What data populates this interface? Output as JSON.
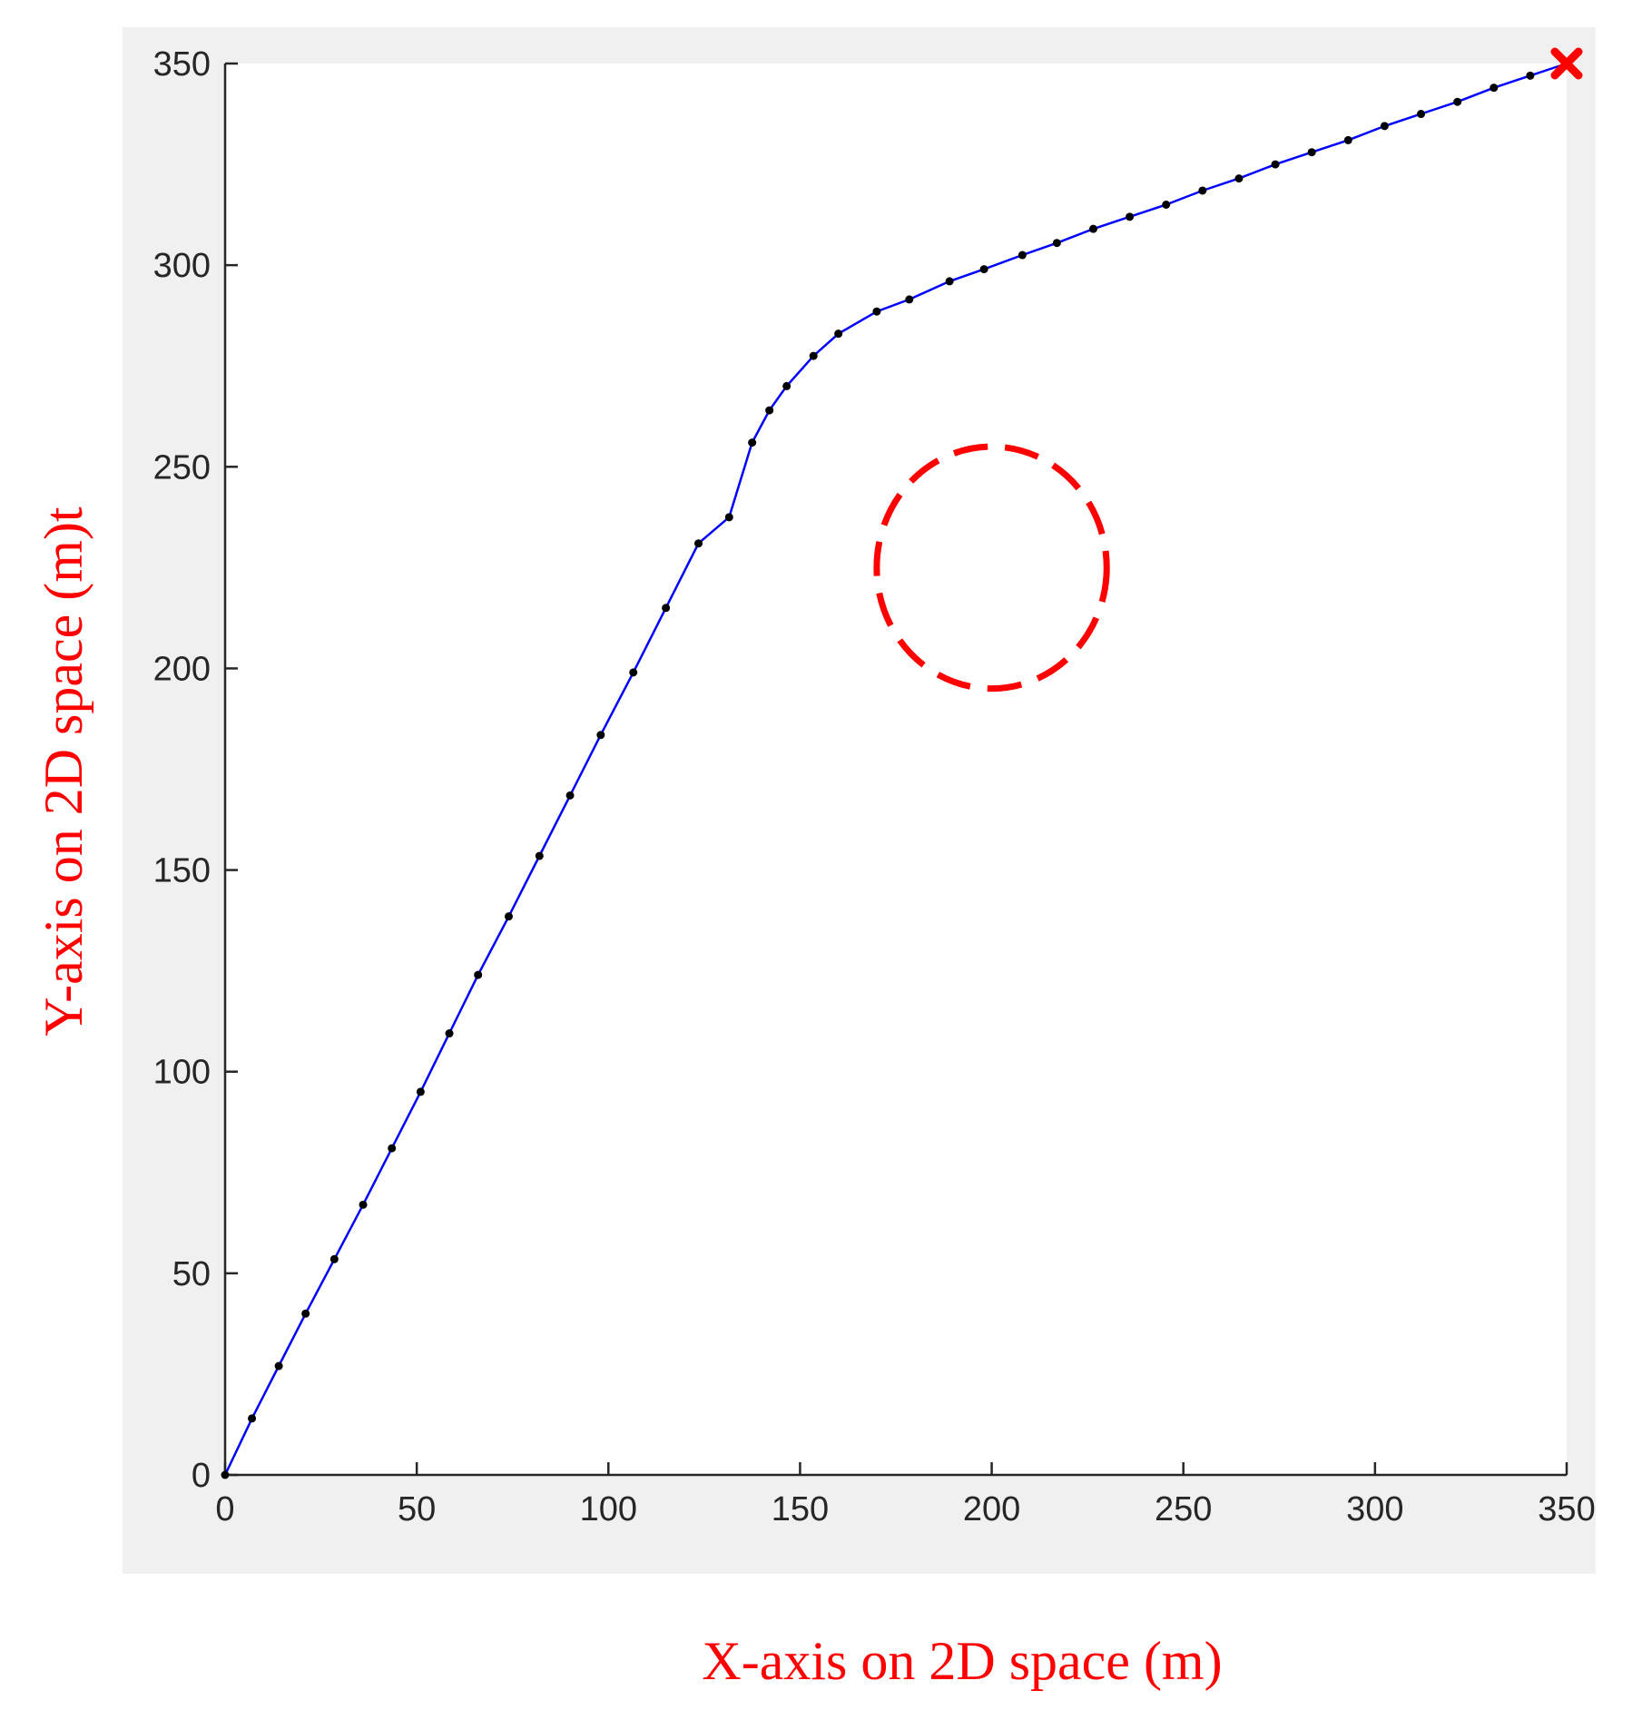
{
  "chart_data": {
    "type": "line",
    "xlabel": "X-axis on 2D space (m)",
    "ylabel": "Y-axis on 2D space (m)t",
    "xlim": [
      0,
      350
    ],
    "ylim": [
      0,
      350
    ],
    "xticks": [
      0,
      50,
      100,
      150,
      200,
      250,
      300,
      350
    ],
    "yticks": [
      0,
      50,
      100,
      150,
      200,
      250,
      300,
      350
    ],
    "grid": false,
    "series": [
      {
        "line_color": "#0000ff",
        "marker_color": "#000000",
        "points": [
          [
            0,
            0
          ],
          [
            7,
            14
          ],
          [
            14,
            27
          ],
          [
            21,
            40
          ],
          [
            28.5,
            53.5
          ],
          [
            36,
            67
          ],
          [
            43.5,
            81
          ],
          [
            51,
            95
          ],
          [
            58.5,
            109.5
          ],
          [
            66,
            124
          ],
          [
            74,
            138.5
          ],
          [
            82,
            153.5
          ],
          [
            90,
            168.5
          ],
          [
            98,
            183.5
          ],
          [
            106.5,
            199
          ],
          [
            115,
            215
          ],
          [
            123.5,
            231
          ],
          [
            131.5,
            237.5
          ],
          [
            137.5,
            256
          ],
          [
            142,
            264
          ],
          [
            146.5,
            270
          ],
          [
            153.5,
            277.5
          ],
          [
            160,
            283
          ],
          [
            170,
            288.5
          ],
          [
            178.5,
            291.5
          ],
          [
            189,
            296
          ],
          [
            198,
            299
          ],
          [
            208,
            302.5
          ],
          [
            217,
            305.5
          ],
          [
            226.5,
            309
          ],
          [
            236,
            312
          ],
          [
            245.5,
            315
          ],
          [
            255,
            318.5
          ],
          [
            264.5,
            321.5
          ],
          [
            274,
            325
          ],
          [
            283.5,
            328
          ],
          [
            293,
            331
          ],
          [
            302.5,
            334.5
          ],
          [
            312,
            337.5
          ],
          [
            321.5,
            340.5
          ],
          [
            331,
            344
          ],
          [
            340.5,
            347
          ],
          [
            350,
            350
          ]
        ]
      }
    ],
    "obstacle": {
      "shape": "circle",
      "center": [
        200,
        225
      ],
      "radius_x": 30,
      "radius_y": 30,
      "style": "dashed",
      "color": "#ff0000"
    },
    "goal_marker": {
      "point": [
        350,
        350
      ],
      "symbol": "x",
      "color": "#ff0000"
    },
    "colors": {
      "axes_background": "#ffffff",
      "figure_background": "#f0f0f0",
      "axis_color": "#262626",
      "title_color": "#ff0000"
    }
  }
}
